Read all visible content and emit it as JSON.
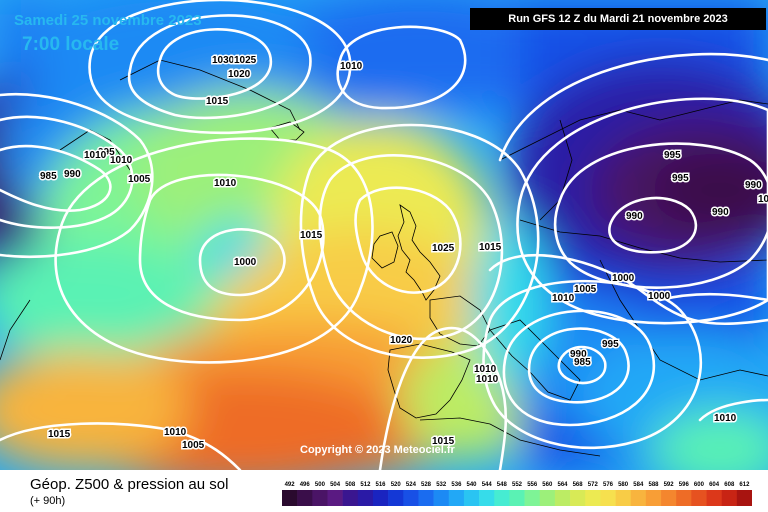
{
  "header": {
    "date": "Samedi 25 novembre 2023",
    "time": "7:00 locale",
    "run": "Run GFS 12 Z du Mardi 21 novembre 2023"
  },
  "footer": {
    "title": "Géop. Z500 & pression au sol",
    "subtitle": "(+ 90h)",
    "copyright": "Copyright © 2023 Meteociel.fr"
  },
  "legend": {
    "values": [
      "492",
      "496",
      "500",
      "504",
      "508",
      "512",
      "516",
      "520",
      "524",
      "528",
      "532",
      "536",
      "540",
      "544",
      "548",
      "552",
      "556",
      "560",
      "564",
      "568",
      "572",
      "576",
      "580",
      "584",
      "588",
      "592",
      "596",
      "600",
      "604",
      "608",
      "612"
    ],
    "colors": [
      "#2a0a2e",
      "#3a0e4a",
      "#4a1466",
      "#5a1a82",
      "#3a1690",
      "#2a1aa6",
      "#1a24c0",
      "#1438d6",
      "#1850e6",
      "#1a6cf0",
      "#1c8af4",
      "#22a8f6",
      "#2ac4f2",
      "#36dcea",
      "#46ecd2",
      "#5af2b4",
      "#7ef496",
      "#9cf07a",
      "#bcec64",
      "#d8ea56",
      "#ecea52",
      "#f6e04e",
      "#f8cc46",
      "#f8b43e",
      "#f89e36",
      "#f4862e",
      "#ee6c26",
      "#e65220",
      "#dc381a",
      "#c82414",
      "#a81410"
    ]
  },
  "pressure_labels": [
    "1030",
    "1025",
    "1020",
    "1015",
    "1010",
    "1010",
    "1010",
    "1015",
    "1000",
    "1025",
    "1015",
    "1005",
    "1000",
    "1000",
    "1010",
    "995",
    "990",
    "990",
    "990",
    "985",
    "990",
    "995",
    "995",
    "1020",
    "1010",
    "1010",
    "1015",
    "1015",
    "1010",
    "1005",
    "1010",
    "990",
    "985",
    "1010",
    "1005",
    "1000",
    "995"
  ]
}
